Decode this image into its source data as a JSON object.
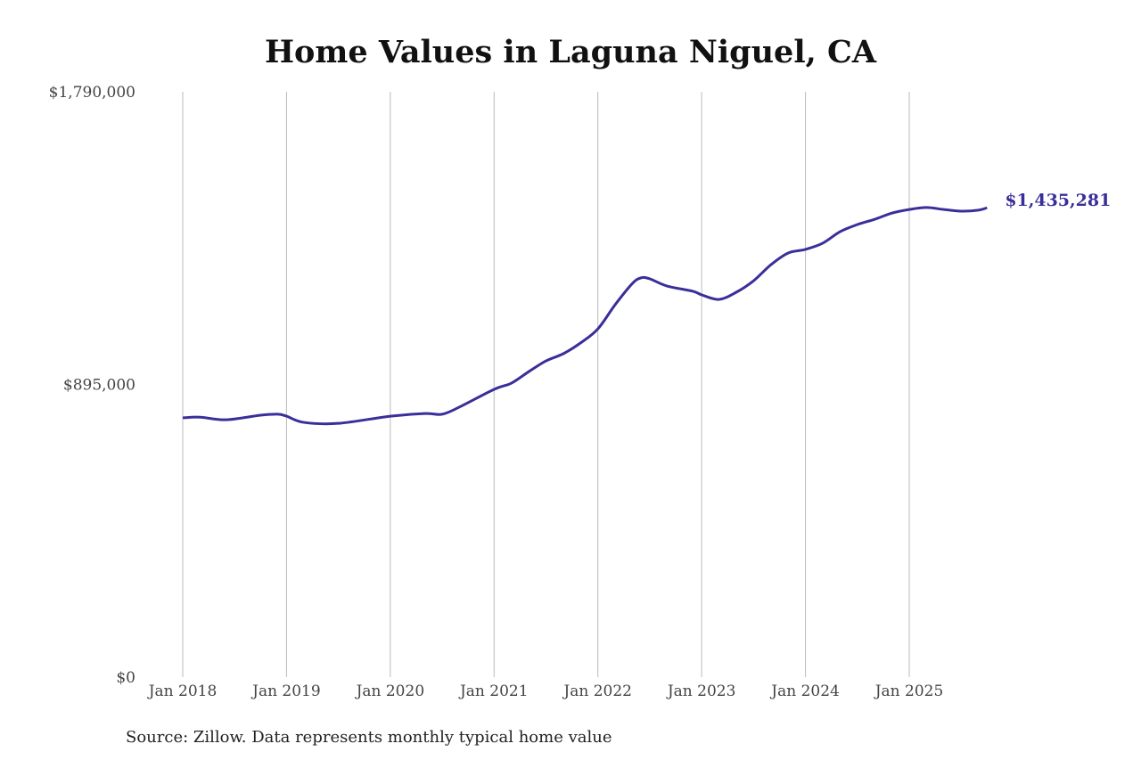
{
  "chart_data": {
    "type": "line",
    "title": "Home Values in Laguna Niguel, CA",
    "source": "Source: Zillow. Data represents monthly typical home value",
    "xlabel": "",
    "ylabel": "",
    "ylim": [
      0,
      1790000
    ],
    "y_ticks": [
      0,
      895000,
      1790000
    ],
    "y_tick_labels": [
      "$0",
      "$895,000",
      "$1,790,000"
    ],
    "x_tick_labels": [
      "Jan 2018",
      "Jan 2019",
      "Jan 2020",
      "Jan 2021",
      "Jan 2022",
      "Jan 2023",
      "Jan 2024",
      "Jan 2025"
    ],
    "x_ticks": [
      "2018-01",
      "2019-01",
      "2020-01",
      "2021-01",
      "2022-01",
      "2023-01",
      "2024-01",
      "2025-01"
    ],
    "grid": "vertical",
    "line_color": "#3a2f9a",
    "end_label": "$1,435,281",
    "series": [
      {
        "x": [
          "2018-01",
          "2018-03",
          "2018-06",
          "2018-10",
          "2018-12",
          "2019-01",
          "2019-03",
          "2019-07",
          "2020-01",
          "2020-05",
          "2020-07",
          "2020-09",
          "2021-01",
          "2021-03",
          "2021-05",
          "2021-07",
          "2021-09",
          "2021-11",
          "2022-01",
          "2022-03",
          "2022-05",
          "2022-06",
          "2022-07",
          "2022-09",
          "2022-12",
          "2023-01",
          "2023-03",
          "2023-05",
          "2023-07",
          "2023-09",
          "2023-11",
          "2024-01",
          "2024-03",
          "2024-05",
          "2024-07",
          "2024-09",
          "2024-11",
          "2025-01",
          "2025-03",
          "2025-05",
          "2025-07",
          "2025-09",
          "2025-10"
        ],
        "values": [
          793000,
          795000,
          787000,
          801000,
          804000,
          798000,
          779000,
          776000,
          798000,
          806000,
          804000,
          826000,
          880000,
          899000,
          934000,
          967000,
          989000,
          1022000,
          1065000,
          1139000,
          1204000,
          1221000,
          1218000,
          1196000,
          1180000,
          1169000,
          1155000,
          1177000,
          1212000,
          1261000,
          1297000,
          1308000,
          1327000,
          1362000,
          1384000,
          1400000,
          1419000,
          1430000,
          1436000,
          1430000,
          1425000,
          1428000,
          1435281
        ]
      }
    ]
  }
}
